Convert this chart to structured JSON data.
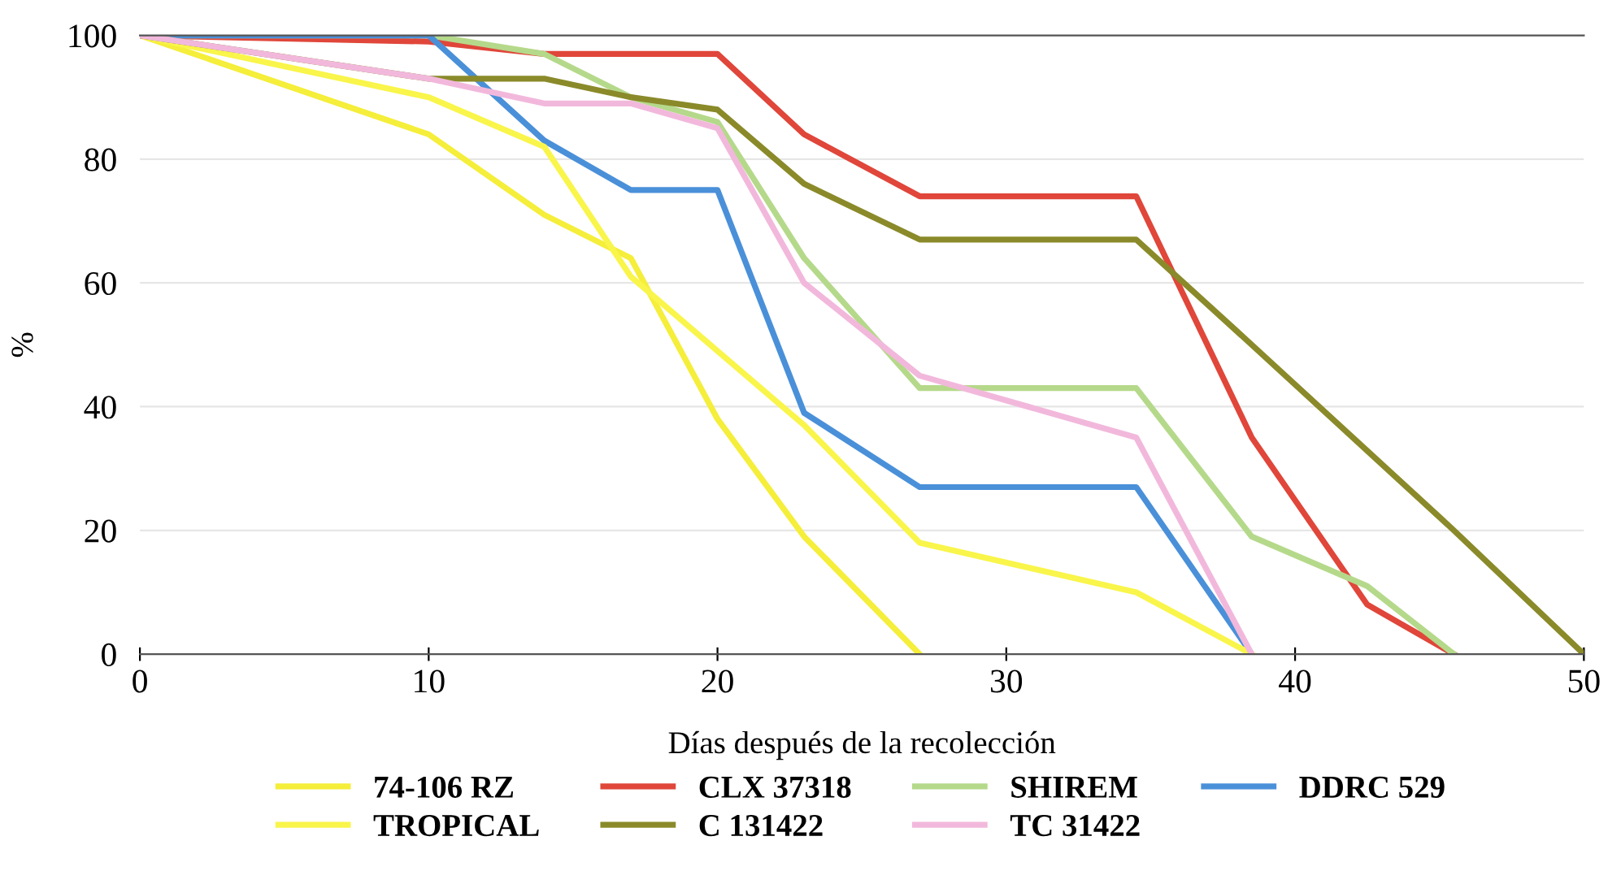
{
  "chart_data": {
    "type": "line",
    "xlabel": "Días después de la recolección",
    "ylabel": "%",
    "xlim": [
      0,
      50
    ],
    "xticks": [
      0,
      10,
      20,
      30,
      40,
      50
    ],
    "ylim": [
      0,
      100
    ],
    "yticks": [
      0,
      20,
      40,
      60,
      80,
      100
    ],
    "grid": "y",
    "legend": "bottom",
    "marker": "none",
    "line_style": "solid",
    "series": [
      {
        "name": "74-106 RZ",
        "color": "#f5ee3a",
        "x": [
          0,
          10,
          14,
          17,
          20,
          23,
          27
        ],
        "values": [
          100,
          84,
          71,
          64,
          38,
          19,
          0
        ]
      },
      {
        "name": "CLX 37318",
        "color": "#e0463a",
        "x": [
          0,
          10,
          14,
          20,
          23,
          27,
          34.5,
          38.5,
          42.5,
          45.5
        ],
        "values": [
          100,
          99,
          97,
          97,
          84,
          74,
          74,
          35,
          8,
          0
        ]
      },
      {
        "name": "SHIREM",
        "color": "#b5d98a",
        "x": [
          0,
          10,
          14,
          17,
          20,
          23,
          27,
          34.5,
          38.5,
          42.5,
          45.5
        ],
        "values": [
          100,
          100,
          97,
          90,
          86,
          64,
          43,
          43,
          19,
          11,
          0
        ]
      },
      {
        "name": "DDRC 529",
        "color": "#4a90d9",
        "x": [
          0,
          10,
          14,
          17,
          20,
          23,
          27,
          34.5,
          38.5
        ],
        "values": [
          100,
          100,
          83,
          75,
          75,
          39,
          27,
          27,
          0
        ]
      },
      {
        "name": "TROPICAL",
        "color": "#f9f54a",
        "x": [
          0,
          10,
          14,
          17,
          20,
          23,
          27,
          34.5,
          38.5
        ],
        "values": [
          100,
          90,
          82,
          61,
          49,
          37,
          18,
          10,
          0
        ]
      },
      {
        "name": "C 131422",
        "color": "#8a8a2a",
        "x": [
          0,
          10,
          14,
          17,
          20,
          23,
          27,
          34.5,
          38.5,
          45.5,
          50
        ],
        "values": [
          100,
          93,
          93,
          90,
          88,
          76,
          67,
          67,
          50,
          20,
          0
        ]
      },
      {
        "name": "TC 31422",
        "color": "#f2b8dc",
        "x": [
          0,
          10,
          14,
          17,
          20,
          23,
          27,
          34.5,
          38.5
        ],
        "values": [
          100,
          93,
          89,
          89,
          85,
          60,
          45,
          35,
          0
        ]
      }
    ]
  }
}
